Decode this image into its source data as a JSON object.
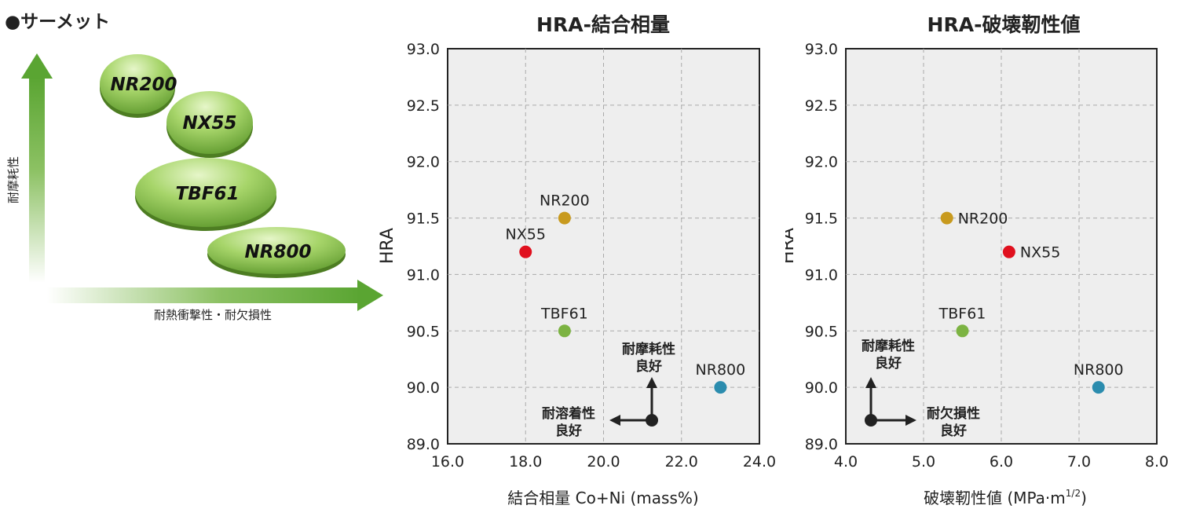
{
  "section_title": "●サーメット",
  "diagram": {
    "y_axis_label": "耐摩耗性",
    "x_axis_label": "耐熱衝撃性・耐欠損性",
    "grades": [
      "NR200",
      "NX55",
      "TBF61",
      "NR800"
    ]
  },
  "colors": {
    "NR200": "#c89a1e",
    "NX55": "#e0101e",
    "TBF61": "#7cb342",
    "NR800": "#2b8cae",
    "plot_bg": "#eeeeee",
    "grid": "#aaaaaa",
    "green_arrow": "#5aa532"
  },
  "chart_data": [
    {
      "type": "scatter",
      "title": "HRA-結合相量",
      "xlabel": "結合相量 Co+Ni (mass%)",
      "ylabel": "HRA",
      "xlim": [
        16.0,
        24.0
      ],
      "ylim": [
        89.0,
        93.0
      ],
      "xticks": [
        "16.0",
        "18.0",
        "20.0",
        "22.0",
        "24.0"
      ],
      "yticks": [
        "89.0",
        "90.0",
        "90.5",
        "91.0",
        "91.5",
        "92.0",
        "92.5",
        "93.0"
      ],
      "grid": true,
      "points": [
        {
          "label": "NR200",
          "x": 19.0,
          "y": 91.5
        },
        {
          "label": "NX55",
          "x": 18.0,
          "y": 91.2
        },
        {
          "label": "TBF61",
          "x": 19.0,
          "y": 90.5
        },
        {
          "label": "NR800",
          "x": 23.0,
          "y": 90.0
        }
      ],
      "annotations": {
        "up_label_1": "耐摩耗性",
        "up_label_2": "良好",
        "left_label_1": "耐溶着性",
        "left_label_2": "良好"
      }
    },
    {
      "type": "scatter",
      "title": "HRA-破壊靭性値",
      "xlabel": "破壊靭性値 (MPa·m",
      "xlabel_sup": "1/2",
      "xlabel_end": ")",
      "ylabel": "HRA",
      "xlim": [
        4.0,
        8.0
      ],
      "ylim": [
        89.0,
        93.0
      ],
      "xticks": [
        "4.0",
        "5.0",
        "6.0",
        "7.0",
        "8.0"
      ],
      "yticks": [
        "89.0",
        "90.0",
        "90.5",
        "91.0",
        "91.5",
        "92.0",
        "92.5",
        "93.0"
      ],
      "grid": true,
      "points": [
        {
          "label": "NR200",
          "x": 5.3,
          "y": 91.5
        },
        {
          "label": "NX55",
          "x": 6.1,
          "y": 91.2
        },
        {
          "label": "TBF61",
          "x": 5.5,
          "y": 90.5
        },
        {
          "label": "NR800",
          "x": 7.25,
          "y": 90.0
        }
      ],
      "annotations": {
        "up_label_1": "耐摩耗性",
        "up_label_2": "良好",
        "right_label_1": "耐欠損性",
        "right_label_2": "良好"
      }
    }
  ]
}
